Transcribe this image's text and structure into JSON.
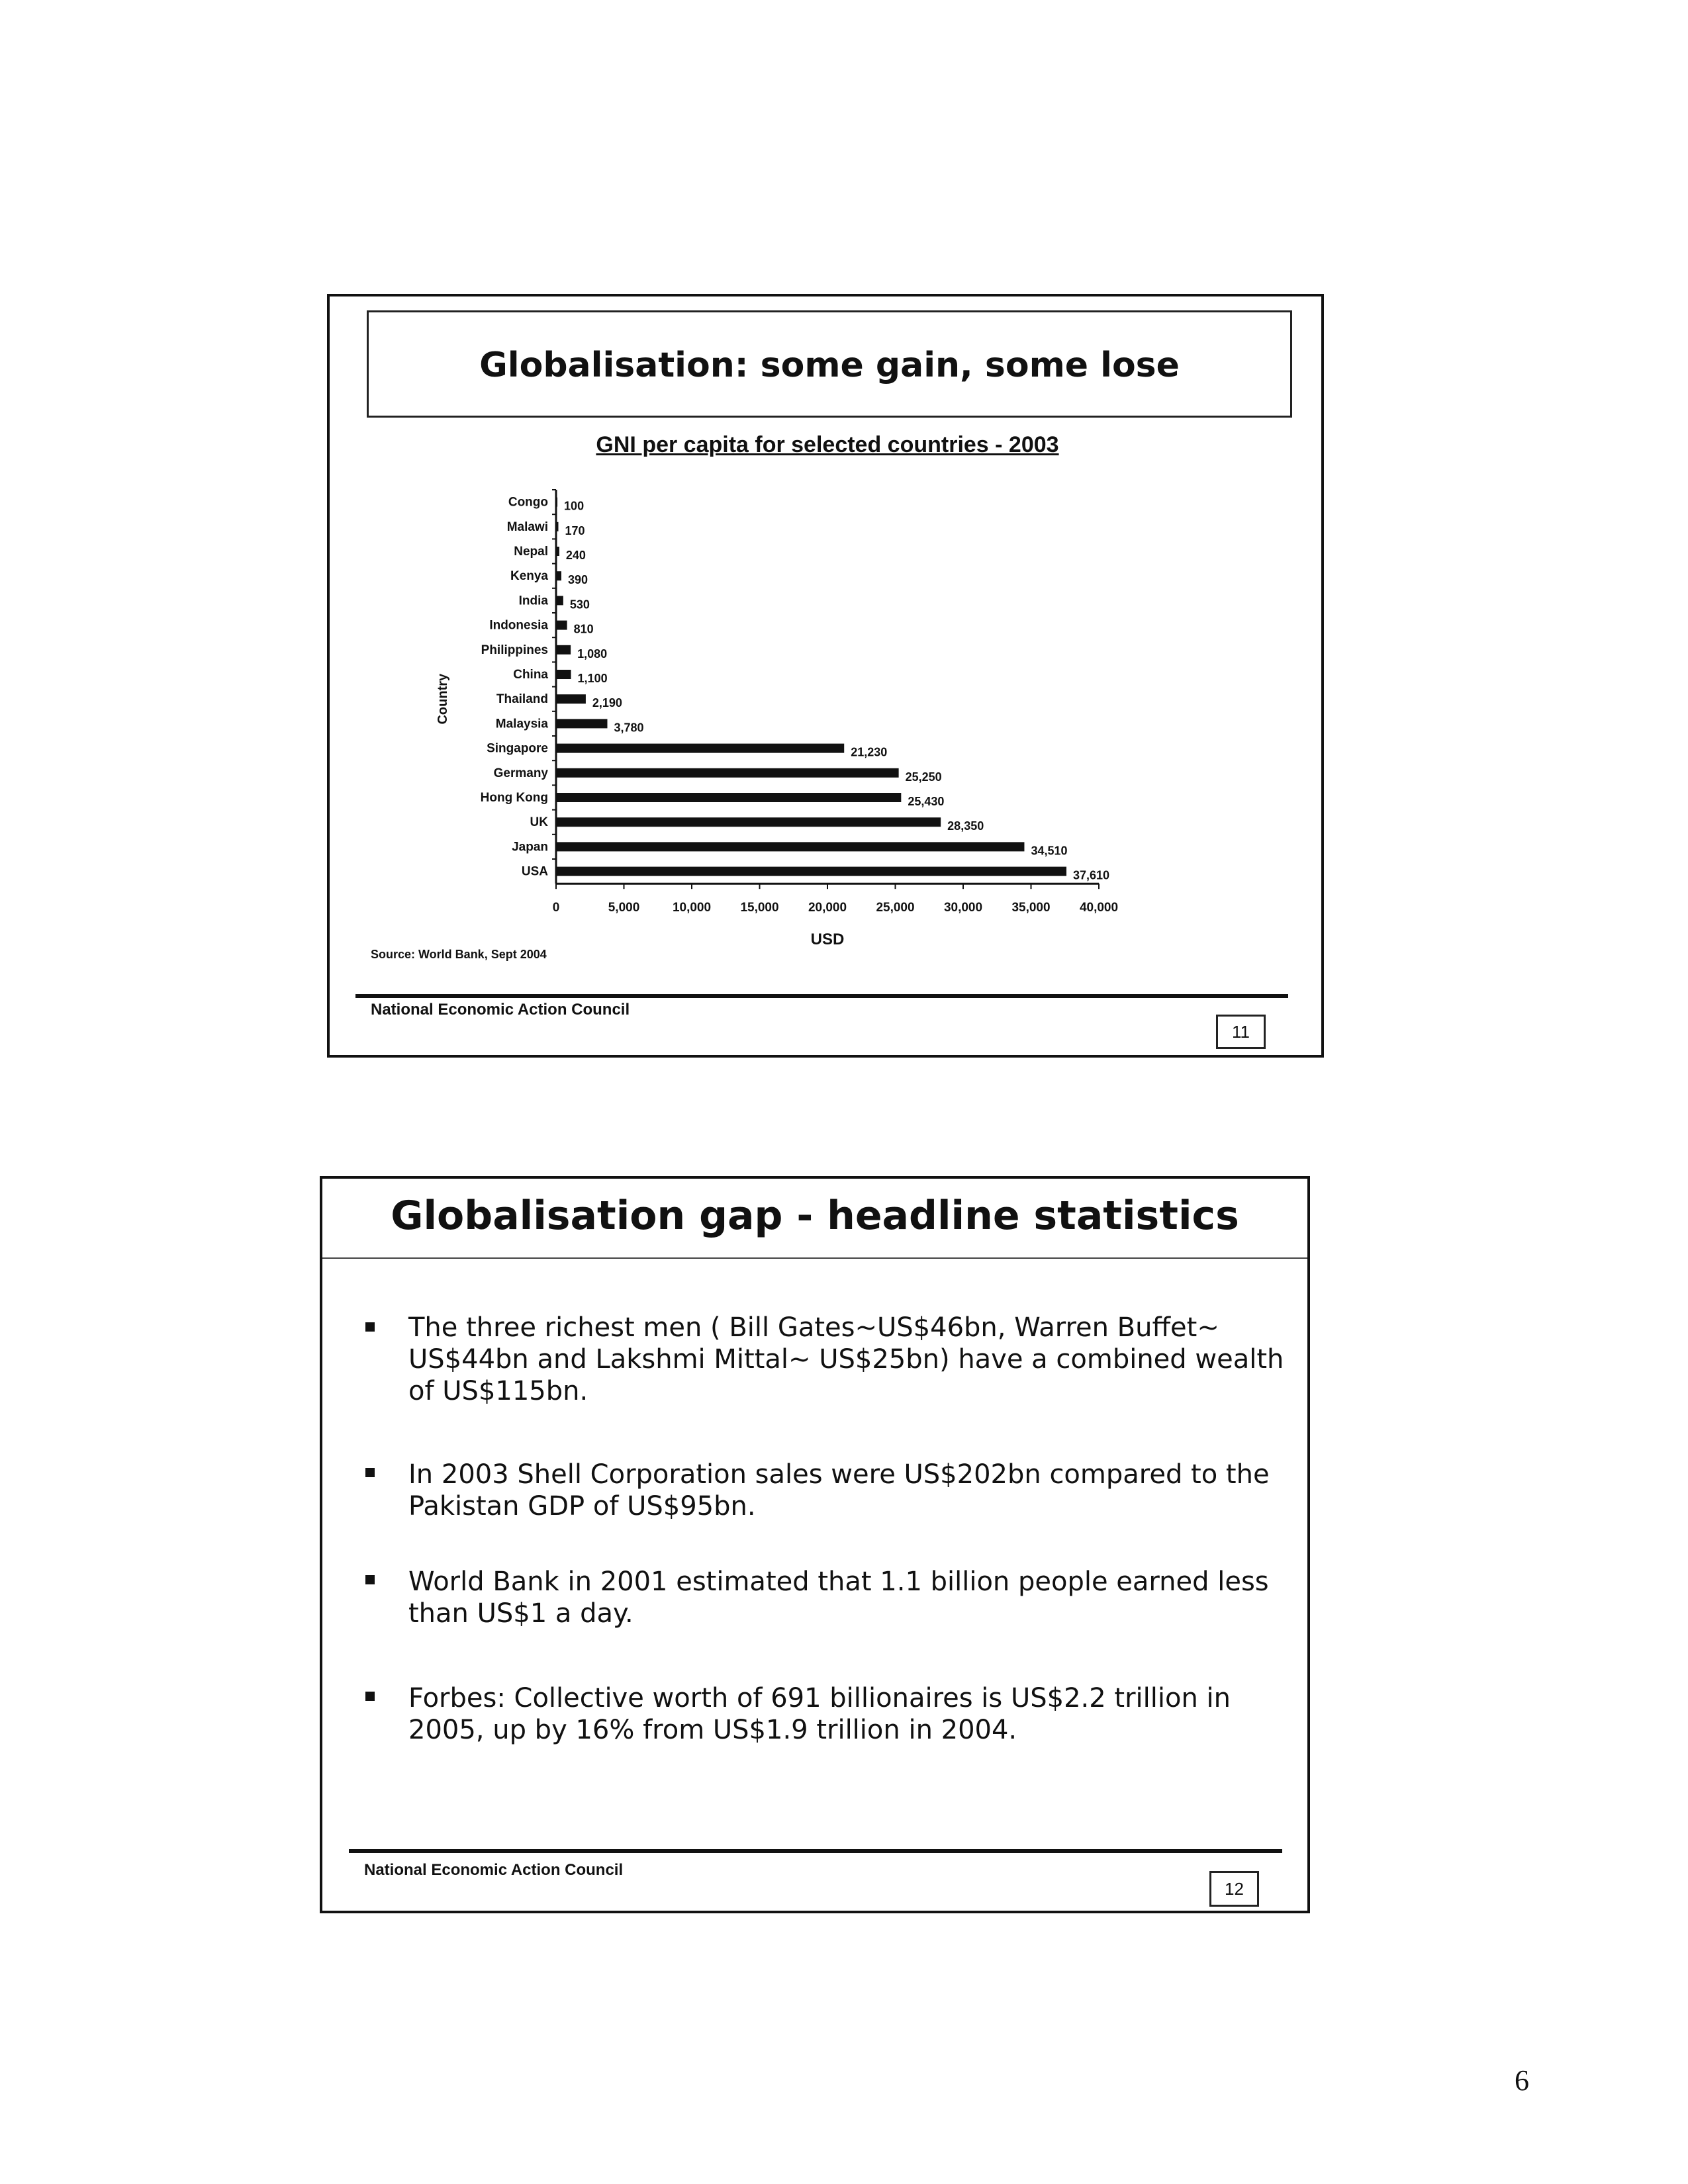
{
  "slide1": {
    "title": "Globalisation: some gain, some lose",
    "source": "Source: World Bank, Sept 2004",
    "footer": "National Economic Action Council",
    "page_number": "11"
  },
  "chart_data": {
    "type": "bar",
    "orientation": "horizontal",
    "title": "GNI per capita for selected countries - 2003",
    "xlabel": "USD",
    "ylabel": "Country",
    "xlim": [
      0,
      40000
    ],
    "xticks": [
      "0",
      "5,000",
      "10,000",
      "15,000",
      "20,000",
      "25,000",
      "30,000",
      "35,000",
      "40,000"
    ],
    "categories": [
      "Congo",
      "Malawi",
      "Nepal",
      "Kenya",
      "India",
      "Indonesia",
      "Philippines",
      "China",
      "Thailand",
      "Malaysia",
      "Singapore",
      "Germany",
      "Hong Kong",
      "UK",
      "Japan",
      "USA"
    ],
    "values": [
      100,
      170,
      240,
      390,
      530,
      810,
      1080,
      1100,
      2190,
      3780,
      21230,
      25250,
      25430,
      28350,
      34510,
      37610
    ],
    "value_labels": [
      "100",
      "170",
      "240",
      "390",
      "530",
      "810",
      "1,080",
      "1,100",
      "2,190",
      "3,780",
      "21,230",
      "25,250",
      "25,430",
      "28,350",
      "34,510",
      "37,610"
    ],
    "grid": false,
    "bar_color": "#111111"
  },
  "slide2": {
    "title": "Globalisation gap - headline statistics",
    "bullets": [
      {
        "lines": [
          "The three richest men ( Bill Gates~US$46bn, Warren Buffet~",
          "US$44bn and Lakshmi Mittal~ US$25bn) have a combined wealth",
          "of US$115bn."
        ]
      },
      {
        "lines": [
          "In 2003 Shell Corporation sales were US$202bn compared to the",
          "Pakistan GDP of US$95bn."
        ]
      },
      {
        "lines": [
          "World Bank in 2001 estimated that 1.1 billion people earned less",
          "than US$1 a day."
        ]
      },
      {
        "lines": [
          "Forbes: Collective worth of 691 billionaires is US$2.2 trillion in",
          "2005, up by 16% from US$1.9 trillion in 2004."
        ]
      }
    ],
    "footer": "National Economic Action Council",
    "page_number": "12"
  },
  "document_page_number": "6"
}
